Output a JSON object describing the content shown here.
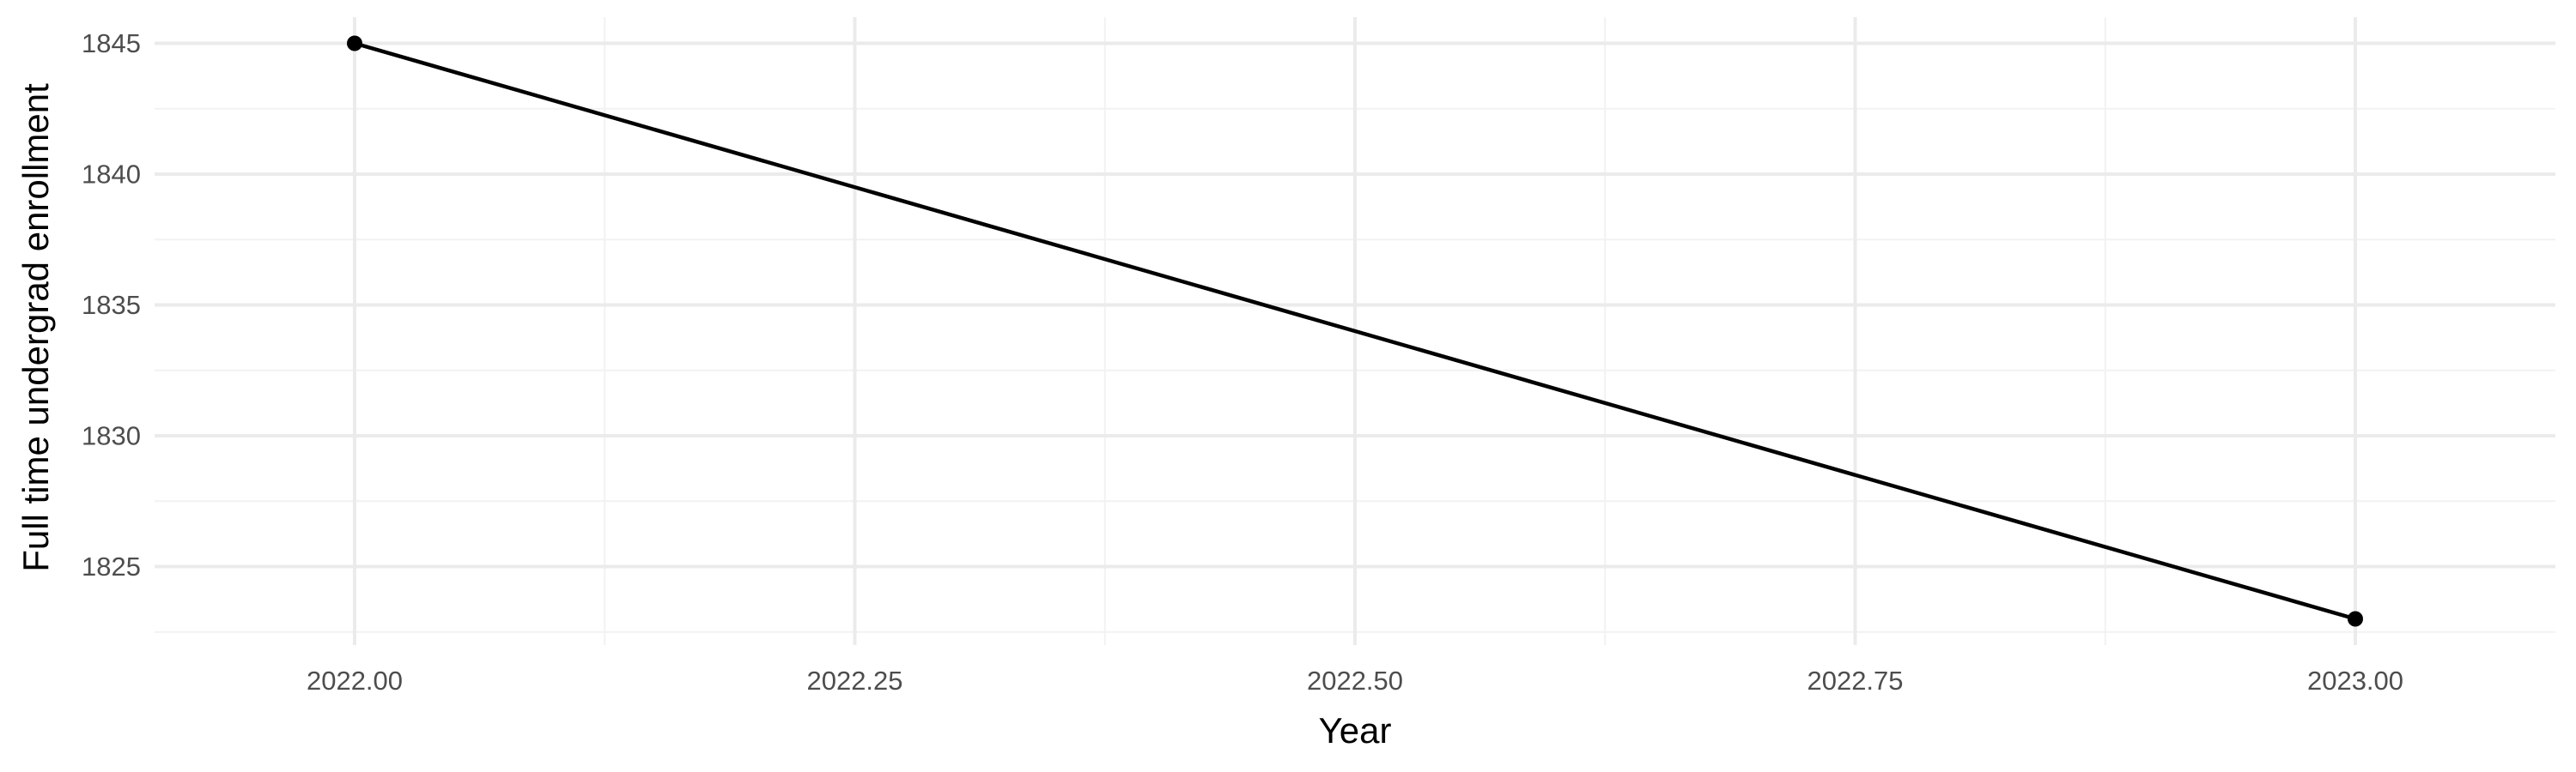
{
  "chart_data": {
    "type": "line",
    "title": "",
    "xlabel": "Year",
    "ylabel": "Full time undergrad enrollment",
    "x": [
      2022.0,
      2023.0
    ],
    "series": [
      {
        "values": [
          1845,
          1823
        ],
        "color": "#000000"
      }
    ],
    "xlim": [
      2021.9,
      2023.1
    ],
    "ylim": [
      1822,
      1846
    ],
    "x_ticks": [
      2022.0,
      2022.25,
      2022.5,
      2022.75,
      2023.0
    ],
    "x_tick_labels": [
      "2022.00",
      "2022.25",
      "2022.50",
      "2022.75",
      "2023.00"
    ],
    "x_minor_ticks": [
      2022.125,
      2022.375,
      2022.625,
      2022.875
    ],
    "y_ticks": [
      1825,
      1830,
      1835,
      1840,
      1845
    ],
    "y_tick_labels": [
      "1825",
      "1830",
      "1835",
      "1840",
      "1845"
    ],
    "y_minor_ticks": [
      1822.5,
      1827.5,
      1832.5,
      1837.5,
      1842.5
    ],
    "grid": true,
    "legend": "none",
    "markers": true
  }
}
